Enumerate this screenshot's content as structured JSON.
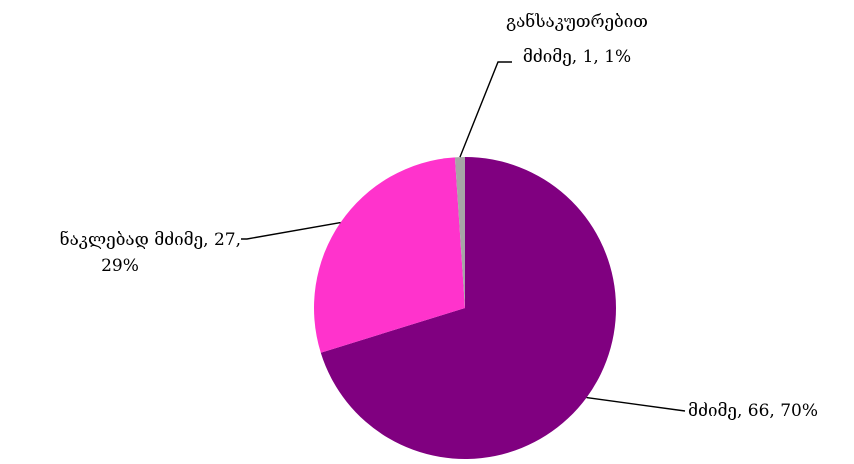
{
  "chart_data": {
    "type": "pie",
    "title": "",
    "slices": [
      {
        "label": "მძიმე",
        "value": 66,
        "percent": "70%",
        "label_text": "მძიმე, 66, 70%",
        "color": "#800080"
      },
      {
        "label": "ნაკლებად მძიმე",
        "value": 27,
        "percent": "29%",
        "label_text": "ნაკლებად მძიმე, 27,",
        "label_text_line2": "29%",
        "color": "#ff33cc"
      },
      {
        "label": "განსაკუთრებით მძიმე",
        "value": 1,
        "percent": "1%",
        "label_text": "განსაკუთრებით",
        "label_text_line2": "მძიმე, 1, 1%",
        "color": "#a6a6a6"
      }
    ]
  }
}
